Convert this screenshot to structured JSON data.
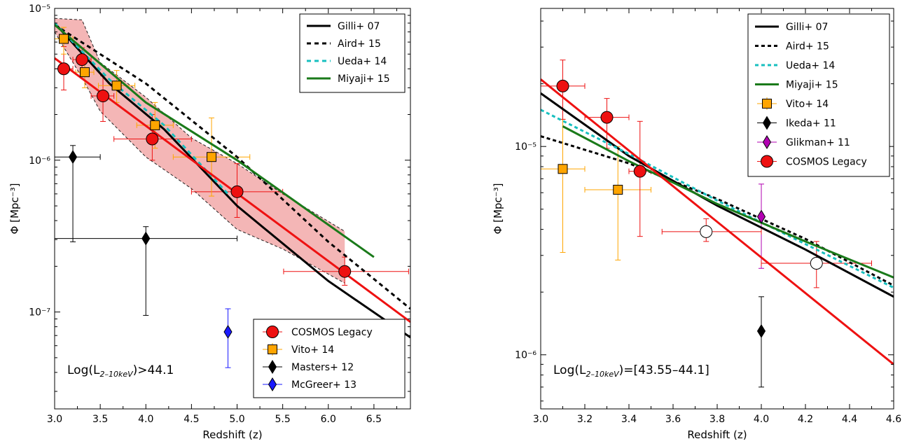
{
  "chart_data": [
    {
      "type": "scatter",
      "xlabel": "Redshift (z)",
      "ylabel": "Φ [Mpc⁻³]",
      "yscale": "log",
      "xlim": [
        3.0,
        6.9
      ],
      "ylim": [
        2.3e-08,
        1e-05
      ],
      "xticks": [
        3.0,
        3.5,
        4.0,
        4.5,
        5.0,
        5.5,
        6.0,
        6.5
      ],
      "xtick_labels": [
        "3.0",
        "3.5",
        "4.0",
        "4.5",
        "5.0",
        "5.5",
        "6.0",
        "6.5"
      ],
      "yticks": [
        1e-05,
        1e-06,
        1e-07
      ],
      "ytick_labels": [
        "10⁻⁵",
        "10⁻⁶",
        "10⁻⁷"
      ],
      "annotation": "Log(L2–10keV)>44.1",
      "model_lines": [
        {
          "name": "Gilli+ 07",
          "style": "solid",
          "color": "#000000",
          "x": [
            3.0,
            3.6,
            4.2,
            5.0,
            6.0,
            6.9
          ],
          "y": [
            8e-06,
            3.2e-06,
            1.6e-06,
            5e-07,
            1.6e-07,
            6.8e-08
          ]
        },
        {
          "name": "Aird+ 15",
          "style": "dashed",
          "color": "#000000",
          "x": [
            3.0,
            4.0,
            5.0,
            6.0,
            6.9
          ],
          "y": [
            7.8e-06,
            3.2e-06,
            1.05e-06,
            2.9e-07,
            1.05e-07
          ]
        },
        {
          "name": "Ueda+ 14",
          "style": "dashed",
          "color": "#17bfbf",
          "x": [
            3.0,
            3.6,
            4.2,
            4.9
          ],
          "y": [
            8e-06,
            3.4e-06,
            1.7e-06,
            6e-07
          ]
        },
        {
          "name": "Miyaji+ 15",
          "style": "solid",
          "color": "#1a7a1a",
          "x": [
            3.0,
            4.0,
            5.0,
            6.5
          ],
          "y": [
            7.8e-06,
            2.4e-06,
            1e-06,
            2.3e-07
          ]
        },
        {
          "name": "",
          "style": "solid",
          "color": "#ee1111",
          "x": [
            3.0,
            6.9
          ],
          "y": [
            4.7e-06,
            8.6e-08
          ]
        }
      ],
      "band": {
        "color": "#f4b6b6",
        "x": [
          3.0,
          3.3,
          3.5,
          4.0,
          4.5,
          5.0,
          5.5,
          6.18
        ],
        "upper": [
          8.6e-06,
          8.4e-06,
          4.4e-06,
          2.6e-06,
          1.4e-06,
          9.5e-07,
          6e-07,
          3.4e-07
        ],
        "lower": [
          7e-06,
          3.5e-06,
          2.1e-06,
          1.05e-06,
          6.5e-07,
          3.5e-07,
          2.6e-07,
          1.55e-07
        ]
      },
      "series": [
        {
          "name": "COSMOS Legacy",
          "marker": "circle",
          "color": "#ee1111",
          "ecolor": "#ee1111",
          "points": [
            {
              "x": 3.1,
              "y": 4e-06,
              "xerr": [
                0.1,
                0.1
              ],
              "yerr": [
                2.9e-06,
                5.6e-06
              ]
            },
            {
              "x": 3.3,
              "y": 4.6e-06,
              "xerr": [
                0.1,
                0.1
              ],
              "yerr": [
                3.8e-06,
                5.5e-06
              ]
            },
            {
              "x": 3.53,
              "y": 2.65e-06,
              "xerr": [
                0.13,
                0.12
              ],
              "yerr": [
                1.8e-06,
                3.6e-06
              ]
            },
            {
              "x": 4.07,
              "y": 1.38e-06,
              "xerr": [
                0.42,
                0.43
              ],
              "yerr": [
                1e-06,
                2e-06
              ]
            },
            {
              "x": 5.0,
              "y": 6.2e-07,
              "xerr": [
                0.5,
                0.5
              ],
              "yerr": [
                4.2e-07,
                9.5e-07
              ]
            },
            {
              "x": 6.18,
              "y": 1.85e-07,
              "xerr": [
                0.67,
                0.7
              ],
              "yerr": [
                1.5e-07,
                2.3e-07
              ]
            }
          ]
        },
        {
          "name": "Vito+ 14",
          "marker": "square",
          "color": "#ffa500",
          "ecolor": "#ffa500",
          "points": [
            {
              "x": 3.1,
              "y": 6.3e-06,
              "xerr": [
                0.1,
                0.1
              ],
              "yerr": [
                5e-06,
                7.5e-06
              ]
            },
            {
              "x": 3.33,
              "y": 3.8e-06,
              "xerr": [
                0.1,
                0.1
              ],
              "yerr": [
                3e-06,
                4.8e-06
              ]
            },
            {
              "x": 3.68,
              "y": 3.1e-06,
              "xerr": [
                0.2,
                0.2
              ],
              "yerr": [
                2.4e-06,
                3.9e-06
              ]
            },
            {
              "x": 4.1,
              "y": 1.7e-06,
              "xerr": [
                0.2,
                0.2
              ],
              "yerr": [
                1.2e-06,
                2.4e-06
              ]
            },
            {
              "x": 4.72,
              "y": 1.05e-06,
              "xerr": [
                0.42,
                0.42
              ],
              "yerr": [
                5.8e-07,
                1.9e-06
              ]
            }
          ]
        },
        {
          "name": "Masters+ 12",
          "marker": "diamond",
          "color": "#000000",
          "ecolor": "#000000",
          "points": [
            {
              "x": 3.2,
              "y": 1.05e-06,
              "xerr": [
                0.2,
                0.3
              ],
              "yerr": [
                2.9e-07,
                1.25e-06
              ]
            },
            {
              "x": 4.0,
              "y": 3.05e-07,
              "xerr": [
                1.0,
                1.0
              ],
              "yerr": [
                9.5e-08,
                3.65e-07
              ]
            }
          ]
        },
        {
          "name": "McGreer+ 13",
          "marker": "diamond",
          "color": "#1a1aff",
          "ecolor": "#1a1aff",
          "points": [
            {
              "x": 4.9,
              "y": 7.4e-08,
              "xerr": [
                0,
                0
              ],
              "yerr": [
                4.3e-08,
                1.05e-07
              ]
            }
          ]
        }
      ],
      "legends": {
        "lines": [
          "Gilli+ 07",
          "Aird+ 15",
          "Ueda+ 14",
          "Miyaji+ 15"
        ],
        "points": [
          "COSMOS Legacy",
          "Vito+ 14",
          "Masters+ 12",
          "McGreer+ 13"
        ]
      }
    },
    {
      "type": "scatter",
      "xlabel": "Redshift (z)",
      "ylabel": "Φ [Mpc⁻³]",
      "yscale": "log",
      "xlim": [
        3.0,
        4.6
      ],
      "ylim": [
        5.5e-07,
        4.6e-05
      ],
      "xticks": [
        3.0,
        3.2,
        3.4,
        3.6,
        3.8,
        4.0,
        4.2,
        4.4,
        4.6
      ],
      "xtick_labels": [
        "3.0",
        "3.2",
        "3.4",
        "3.6",
        "3.8",
        "4.0",
        "4.2",
        "4.4",
        "4.6"
      ],
      "yticks": [
        1e-05,
        1e-06
      ],
      "ytick_labels": [
        "10⁻⁵",
        "10⁻⁶"
      ],
      "annotation": "Log(L2–10keV)=[43.55–44.1]",
      "model_lines": [
        {
          "name": "Gilli+ 07",
          "style": "solid",
          "color": "#000000",
          "x": [
            3.0,
            3.4,
            3.8,
            4.2,
            4.6
          ],
          "y": [
            1.8e-05,
            9e-06,
            5.2e-06,
            3.2e-06,
            1.9e-06
          ]
        },
        {
          "name": "Aird+ 15",
          "style": "dashed",
          "color": "#000000",
          "x": [
            3.0,
            3.4,
            3.8,
            4.2,
            4.6
          ],
          "y": [
            1.12e-05,
            8.3e-06,
            5.6e-06,
            3.6e-06,
            2.15e-06
          ]
        },
        {
          "name": "Ueda+ 14",
          "style": "dashed",
          "color": "#17bfbf",
          "x": [
            3.0,
            3.4,
            3.8,
            4.2,
            4.6
          ],
          "y": [
            1.5e-05,
            9.2e-06,
            5.5e-06,
            3.4e-06,
            2.1e-06
          ]
        },
        {
          "name": "Miyaji+ 15",
          "style": "solid",
          "color": "#1a7a1a",
          "x": [
            3.1,
            3.4,
            3.8,
            4.2,
            4.6
          ],
          "y": [
            1.25e-05,
            8.5e-06,
            5.3e-06,
            3.5e-06,
            2.35e-06
          ]
        },
        {
          "name": "",
          "style": "solid",
          "color": "#ee1111",
          "x": [
            3.0,
            4.6
          ],
          "y": [
            2.1e-05,
            9e-07
          ]
        }
      ],
      "series": [
        {
          "name": "Vito+ 14",
          "marker": "square",
          "color": "#ffa500",
          "ecolor": "#ffa500",
          "points": [
            {
              "x": 3.1,
              "y": 7.8e-06,
              "xerr": [
                0.1,
                0.1
              ],
              "yerr": [
                3.1e-06,
                1.35e-05
              ]
            },
            {
              "x": 3.35,
              "y": 6.2e-06,
              "xerr": [
                0.15,
                0.15
              ],
              "yerr": [
                2.85e-06,
                1e-05
              ]
            }
          ]
        },
        {
          "name": "Ikeda+ 11",
          "marker": "diamond",
          "color": "#000000",
          "ecolor": "#000000",
          "points": [
            {
              "x": 4.0,
              "y": 1.3e-06,
              "xerr": [
                0,
                0
              ],
              "yerr": [
                7e-07,
                1.9e-06
              ]
            }
          ]
        },
        {
          "name": "Glikman+ 11",
          "marker": "diamond",
          "color": "#b200b2",
          "ecolor": "#b200b2",
          "points": [
            {
              "x": 4.0,
              "y": 4.6e-06,
              "xerr": [
                0,
                0
              ],
              "yerr": [
                2.6e-06,
                6.6e-06
              ]
            }
          ]
        },
        {
          "name": "COSMOS Legacy",
          "marker": "circle",
          "color": "#ee1111",
          "ecolor": "#ee1111",
          "points": [
            {
              "x": 3.1,
              "y": 1.95e-05,
              "xerr": [
                0.1,
                0.1
              ],
              "yerr": [
                1.35e-05,
                2.6e-05
              ]
            },
            {
              "x": 3.3,
              "y": 1.38e-05,
              "xerr": [
                0.1,
                0.1
              ],
              "yerr": [
                9.8e-06,
                1.7e-05
              ]
            },
            {
              "x": 3.45,
              "y": 7.6e-06,
              "xerr": [
                0.05,
                0.05
              ],
              "yerr": [
                3.7e-06,
                1.32e-05
              ]
            }
          ]
        },
        {
          "name": "",
          "marker": "open-circle",
          "color": "#ffffff",
          "ecolor": "#ee1111",
          "points": [
            {
              "x": 3.75,
              "y": 3.9e-06,
              "xerr": [
                0.2,
                0.25
              ],
              "yerr": [
                3.5e-06,
                4.5e-06
              ]
            },
            {
              "x": 4.25,
              "y": 2.75e-06,
              "xerr": [
                0.25,
                0.25
              ],
              "yerr": [
                2.1e-06,
                3.5e-06
              ]
            }
          ]
        }
      ],
      "legends": {
        "combined": [
          "Gilli+ 07",
          "Aird+ 15",
          "Ueda+ 14",
          "Miyaji+ 15",
          "Vito+ 14",
          "Ikeda+ 11",
          "Glikman+ 11",
          "COSMOS Legacy"
        ]
      }
    }
  ]
}
